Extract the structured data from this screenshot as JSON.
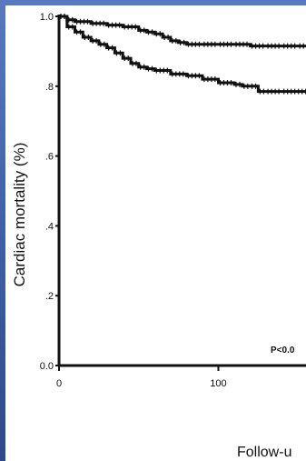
{
  "slide": {
    "background_color": "#4a66a8",
    "panel_color": "#ffffff"
  },
  "chart_data": {
    "type": "line",
    "title": "",
    "xlabel": "Follow-u",
    "ylabel": "Cardiac mortality (%)",
    "ylim": [
      0,
      1
    ],
    "xlim": [
      0,
      155
    ],
    "yticks": [
      {
        "value": 0,
        "label": "0.0"
      },
      {
        "value": 0.2,
        "label": ".2"
      },
      {
        "value": 0.4,
        "label": ".4"
      },
      {
        "value": 0.6,
        "label": ".6"
      },
      {
        "value": 0.8,
        "label": ".8"
      },
      {
        "value": 1.0,
        "label": "1.0"
      }
    ],
    "xticks": [
      {
        "value": 0,
        "label": "0"
      },
      {
        "value": 100,
        "label": "100"
      }
    ],
    "annotation": "P<0.0",
    "line_color": "#111111",
    "series": [
      {
        "x": [
          0,
          5,
          10,
          20,
          30,
          40,
          50,
          55,
          60,
          65,
          70,
          75,
          80,
          90,
          100,
          110,
          120,
          130,
          140,
          150,
          155
        ],
        "values": [
          1.0,
          0.99,
          0.985,
          0.98,
          0.975,
          0.97,
          0.96,
          0.955,
          0.95,
          0.94,
          0.93,
          0.925,
          0.92,
          0.92,
          0.92,
          0.92,
          0.915,
          0.915,
          0.915,
          0.915,
          0.915
        ]
      },
      {
        "x": [
          0,
          5,
          10,
          15,
          20,
          25,
          30,
          35,
          40,
          45,
          50,
          55,
          60,
          70,
          80,
          90,
          100,
          110,
          115,
          120,
          125,
          130,
          140,
          155
        ],
        "values": [
          1.0,
          0.97,
          0.955,
          0.94,
          0.93,
          0.92,
          0.91,
          0.895,
          0.88,
          0.865,
          0.855,
          0.85,
          0.845,
          0.835,
          0.83,
          0.82,
          0.81,
          0.805,
          0.8,
          0.8,
          0.785,
          0.785,
          0.785,
          0.785
        ]
      }
    ]
  }
}
